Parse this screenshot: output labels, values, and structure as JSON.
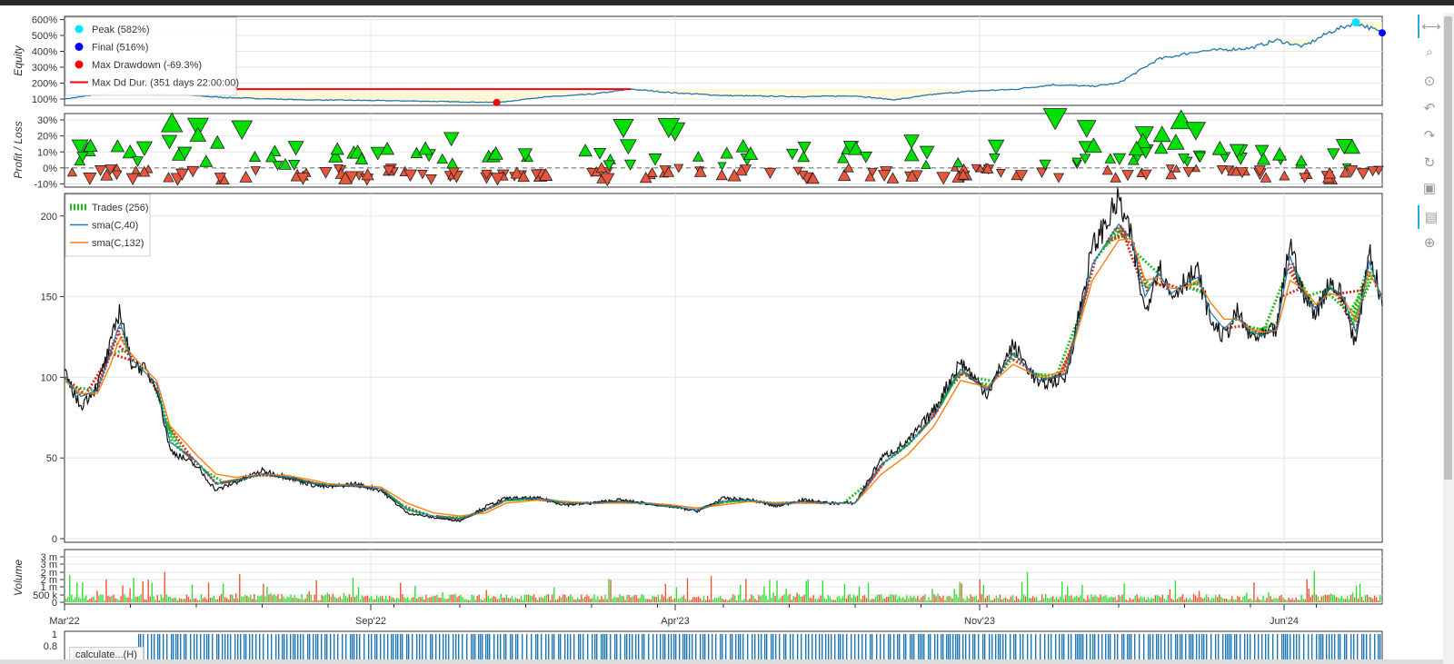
{
  "toolbar": {
    "tools": [
      {
        "name": "pan-icon",
        "glyph": "⟷"
      },
      {
        "name": "zoom-icon",
        "glyph": "⌕"
      },
      {
        "name": "box-zoom-icon",
        "glyph": "⊙"
      },
      {
        "name": "undo-icon",
        "glyph": "↶"
      },
      {
        "name": "redo-icon",
        "glyph": "↷"
      },
      {
        "name": "reset-icon",
        "glyph": "↻"
      },
      {
        "name": "save-icon",
        "glyph": "▣"
      },
      {
        "name": "hover-icon",
        "glyph": "▤"
      },
      {
        "name": "crosshair-icon",
        "glyph": "⊕"
      }
    ]
  },
  "status": {
    "calculate": "calculate...(H)"
  },
  "colors": {
    "equity": "#1f77b4",
    "sma40": "#1f77b4",
    "sma132": "#ff7f0e",
    "win": "#00e000",
    "loss": "#e8553a",
    "peak": "#00e5ff",
    "final": "#0000ff",
    "drawdown": "#ff0000",
    "candle": "#111111"
  },
  "chart_data": [
    {
      "type": "line",
      "panel": "equity",
      "ylabel": "Equity",
      "yticks": [
        "100%",
        "200%",
        "300%",
        "400%",
        "500%",
        "600%"
      ],
      "ylim": [
        60,
        620
      ],
      "legend": {
        "position": "top-left",
        "entries": [
          "Peak (582%)",
          "Final (516%)",
          "Max Drawdown (-69.3%)",
          "Max Dd Dur. (351 days 22:00:00)"
        ]
      },
      "x": [
        0,
        0.04,
        0.08,
        0.12,
        0.18,
        0.22,
        0.26,
        0.3,
        0.33,
        0.36,
        0.4,
        0.43,
        0.46,
        0.5,
        0.53,
        0.56,
        0.6,
        0.63,
        0.66,
        0.69,
        0.72,
        0.75,
        0.78,
        0.8,
        0.83,
        0.86,
        0.88,
        0.9,
        0.92,
        0.94,
        0.96,
        0.98,
        1.0
      ],
      "values": [
        100,
        145,
        130,
        110,
        95,
        92,
        88,
        82,
        78,
        110,
        130,
        162,
        140,
        122,
        118,
        115,
        120,
        95,
        130,
        150,
        160,
        190,
        180,
        200,
        350,
        400,
        410,
        420,
        470,
        430,
        520,
        582,
        516
      ],
      "peak": {
        "x": 0.98,
        "y": 582
      },
      "final": {
        "x": 1.0,
        "y": 516
      },
      "max_drawdown": {
        "x": 0.328,
        "y": 78
      },
      "max_dd_duration": {
        "x0": 0.107,
        "x1": 0.43,
        "y": 162
      }
    },
    {
      "type": "scatter",
      "panel": "profit_loss",
      "ylabel": "Profit / Loss",
      "yticks": [
        "-10%",
        "0%",
        "10%",
        "20%",
        "30%"
      ],
      "ylim": [
        -12,
        34
      ]
    },
    {
      "type": "line",
      "panel": "price",
      "legend": {
        "position": "top-left",
        "entries": [
          "Trades (256)",
          "sma(C,40)",
          "sma(C,132)"
        ]
      },
      "yticks": [
        "0",
        "50",
        "100",
        "150",
        "200"
      ],
      "ylim": [
        0,
        210
      ],
      "xticks": [
        "Mar'22",
        "Sep'22",
        "Apr'23",
        "Nov'23",
        "Jun'24"
      ],
      "x": [
        0,
        0.012,
        0.025,
        0.035,
        0.042,
        0.05,
        0.06,
        0.07,
        0.08,
        0.1,
        0.115,
        0.13,
        0.15,
        0.17,
        0.19,
        0.2,
        0.22,
        0.24,
        0.26,
        0.28,
        0.3,
        0.32,
        0.335,
        0.36,
        0.38,
        0.4,
        0.42,
        0.44,
        0.46,
        0.48,
        0.5,
        0.52,
        0.54,
        0.56,
        0.58,
        0.6,
        0.62,
        0.64,
        0.66,
        0.68,
        0.7,
        0.72,
        0.74,
        0.76,
        0.78,
        0.8,
        0.81,
        0.82,
        0.83,
        0.84,
        0.85,
        0.86,
        0.87,
        0.88,
        0.89,
        0.9,
        0.91,
        0.92,
        0.93,
        0.94,
        0.95,
        0.96,
        0.97,
        0.98,
        0.99,
        1.0
      ],
      "values": [
        102,
        82,
        95,
        120,
        143,
        110,
        105,
        95,
        55,
        45,
        30,
        35,
        42,
        38,
        33,
        32,
        34,
        30,
        16,
        13,
        11,
        20,
        25,
        25,
        21,
        22,
        24,
        22,
        20,
        17,
        25,
        24,
        20,
        24,
        22,
        22,
        50,
        60,
        80,
        110,
        90,
        120,
        95,
        100,
        180,
        210,
        185,
        140,
        170,
        150,
        160,
        165,
        135,
        125,
        140,
        125,
        125,
        130,
        185,
        150,
        140,
        160,
        150,
        120,
        180,
        145
      ],
      "sma40": [
        100,
        88,
        92,
        115,
        135,
        112,
        104,
        96,
        60,
        48,
        34,
        36,
        40,
        38,
        34,
        33,
        33,
        31,
        18,
        14,
        12,
        18,
        24,
        25,
        22,
        22,
        23,
        22,
        20,
        18,
        23,
        24,
        21,
        23,
        22,
        22,
        46,
        58,
        76,
        105,
        92,
        115,
        98,
        102,
        170,
        195,
        185,
        150,
        165,
        152,
        158,
        162,
        140,
        130,
        138,
        128,
        126,
        130,
        175,
        152,
        142,
        156,
        150,
        128,
        172,
        148
      ],
      "sma132": [
        98,
        90,
        90,
        108,
        125,
        115,
        106,
        98,
        70,
        52,
        40,
        38,
        40,
        39,
        36,
        34,
        33,
        32,
        22,
        16,
        14,
        16,
        22,
        24,
        23,
        22,
        22,
        22,
        21,
        19,
        21,
        23,
        22,
        22,
        22,
        22,
        40,
        52,
        70,
        98,
        94,
        108,
        100,
        104,
        160,
        185,
        186,
        160,
        162,
        155,
        156,
        160,
        146,
        136,
        136,
        130,
        128,
        129,
        160,
        155,
        145,
        152,
        150,
        135,
        165,
        150
      ]
    },
    {
      "type": "bar",
      "panel": "volume",
      "ylabel": "Volume",
      "yticks": [
        "0",
        "500 k",
        "1 m",
        "2 m",
        "2 m",
        "3 m",
        "3 m"
      ],
      "ylim": [
        0,
        3300000
      ]
    },
    {
      "type": "bar",
      "panel": "trade_strip",
      "yticks": [
        "1",
        "0.8"
      ]
    }
  ]
}
